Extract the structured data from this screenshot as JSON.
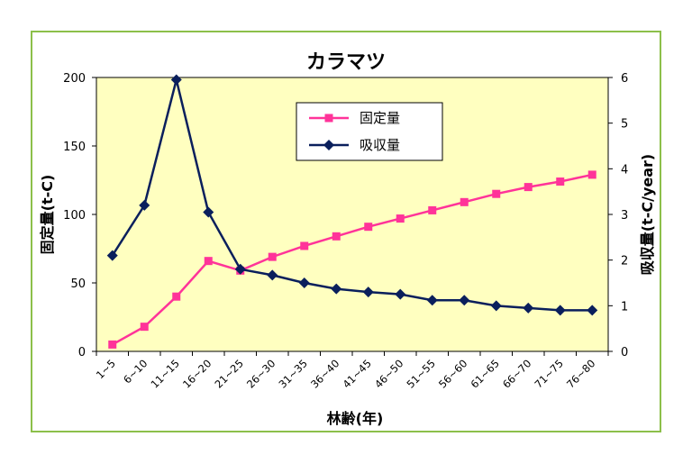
{
  "chart_data": {
    "type": "line",
    "title": "カラマツ",
    "xlabel": "林齢(年)",
    "ylabel_left": "固定量(t-C)",
    "ylabel_right": "吸収量(t-C/year)",
    "categories": [
      "1~5",
      "6~10",
      "11~15",
      "16~20",
      "21~25",
      "26~30",
      "31~35",
      "36~40",
      "41~45",
      "46~50",
      "51~55",
      "56~60",
      "61~65",
      "66~70",
      "71~75",
      "76~80"
    ],
    "ylim_left": [
      0,
      200
    ],
    "yticks_left": [
      0,
      50,
      100,
      150,
      200
    ],
    "ylim_right": [
      0,
      6
    ],
    "yticks_right": [
      0,
      1,
      2,
      3,
      4,
      5,
      6
    ],
    "grid": false,
    "legend_position": "top-center",
    "plot_background": "#ffffc0",
    "series": [
      {
        "name": "固定量",
        "axis": "left",
        "color": "#ff3399",
        "marker": "square",
        "values": [
          5,
          18,
          40,
          66,
          59,
          69,
          77,
          84,
          91,
          97,
          103,
          109,
          115,
          120,
          124,
          129
        ]
      },
      {
        "name": "吸収量",
        "axis": "right",
        "color": "#0a1f5c",
        "marker": "diamond",
        "values": [
          2.1,
          3.2,
          5.95,
          3.05,
          1.8,
          1.67,
          1.5,
          1.37,
          1.3,
          1.25,
          1.12,
          1.12,
          1.0,
          0.95,
          0.9,
          0.9
        ]
      }
    ]
  }
}
